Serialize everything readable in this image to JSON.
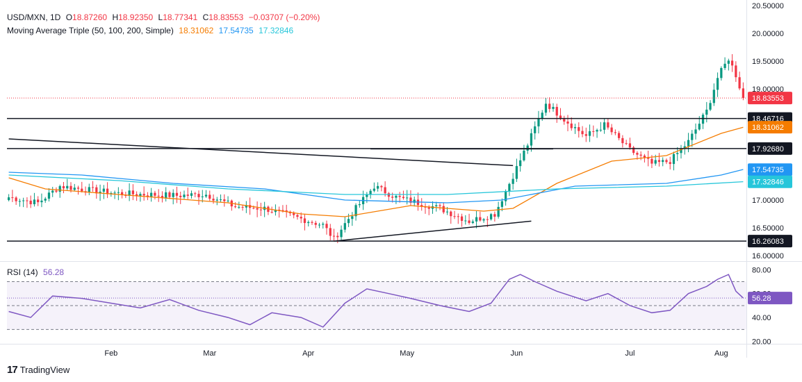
{
  "header": {
    "symbol": "USD/MXN, 1D",
    "o_label": "O",
    "o_value": "18.87260",
    "h_label": "H",
    "h_value": "18.92350",
    "l_label": "L",
    "l_value": "18.77341",
    "c_label": "C",
    "c_value": "18.83553",
    "change": "−0.03707 (−0.20%)",
    "ma_title": "Moving Average Triple (50, 100, 200, Simple)",
    "ma50": "18.31062",
    "ma100": "17.54735",
    "ma200": "17.32846"
  },
  "rsi_header": {
    "title": "RSI (14)",
    "value": "56.28"
  },
  "brand": {
    "name": "TradingView"
  },
  "colors": {
    "up": "#089981",
    "down": "#f23645",
    "ma50": "#f57c00",
    "ma100": "#2196f3",
    "ma200": "#26c6da",
    "rsi": "#7e57c2",
    "price_tag": "#f23645",
    "level": "#131722"
  },
  "chart_data": [
    {
      "type": "candlestick",
      "title": "USD/MXN, 1D",
      "ylim": [
        15.9,
        20.6
      ],
      "y_ticks": [
        "20.50000",
        "20.00000",
        "19.50000",
        "19.00000",
        "17.00000",
        "16.50000",
        "16.00000"
      ],
      "x_ticks": [
        "Feb",
        "Mar",
        "Apr",
        "May",
        "Jun",
        "Jul",
        "Aug"
      ],
      "last_price": 18.83553,
      "last_price_label": "18.83553",
      "levels": [
        {
          "value": 18.46716,
          "label": "18.46716"
        },
        {
          "value": 17.9268,
          "label": "17.92680"
        },
        {
          "value": 16.26083,
          "label": "16.26083"
        }
      ],
      "ma_tags": [
        {
          "name": "MA 50",
          "value": 18.31062,
          "label": "18.31062"
        },
        {
          "name": "MA 100",
          "value": 17.54735,
          "label": "17.54735"
        },
        {
          "name": "MA 200",
          "value": 17.32846,
          "label": "17.32846"
        }
      ],
      "trendlines": [
        {
          "name": "descending-trendline",
          "from": [
            0,
            18.1
          ],
          "to": [
            138,
            17.62
          ]
        },
        {
          "name": "ascending-trendline",
          "from": [
            89,
            16.26
          ],
          "to": [
            143,
            16.62
          ]
        },
        {
          "name": "range-top-line",
          "from": [
            99,
            17.92
          ],
          "to": [
            149,
            17.92
          ]
        }
      ],
      "anchors": [
        [
          0,
          17.05
        ],
        [
          8,
          16.95
        ],
        [
          14,
          17.25
        ],
        [
          22,
          17.18
        ],
        [
          30,
          17.12
        ],
        [
          38,
          17.1
        ],
        [
          46,
          17.08
        ],
        [
          54,
          17.1
        ],
        [
          62,
          16.88
        ],
        [
          70,
          16.85
        ],
        [
          78,
          16.7
        ],
        [
          86,
          16.55
        ],
        [
          89,
          16.3
        ],
        [
          95,
          16.85
        ],
        [
          100,
          17.25
        ],
        [
          106,
          17.05
        ],
        [
          112,
          16.95
        ],
        [
          118,
          16.85
        ],
        [
          126,
          16.62
        ],
        [
          133,
          16.75
        ],
        [
          137,
          17.3
        ],
        [
          142,
          18.0
        ],
        [
          147,
          18.75
        ],
        [
          152,
          18.45
        ],
        [
          158,
          18.15
        ],
        [
          163,
          18.35
        ],
        [
          170,
          17.9
        ],
        [
          176,
          17.65
        ],
        [
          181,
          17.7
        ],
        [
          186,
          18.05
        ],
        [
          191,
          18.6
        ],
        [
          194,
          19.2
        ],
        [
          197,
          19.55
        ],
        [
          199,
          19.25
        ],
        [
          201,
          18.84
        ]
      ],
      "series": [
        {
          "name": "MA 50",
          "points": [
            [
              0,
              17.4
            ],
            [
              10,
              17.2
            ],
            [
              30,
              17.1
            ],
            [
              60,
              16.95
            ],
            [
              80,
              16.75
            ],
            [
              92,
              16.7
            ],
            [
              110,
              16.9
            ],
            [
              130,
              16.8
            ],
            [
              138,
              16.85
            ],
            [
              150,
              17.3
            ],
            [
              165,
              17.7
            ],
            [
              180,
              17.8
            ],
            [
              195,
              18.2
            ],
            [
              201,
              18.31
            ]
          ]
        },
        {
          "name": "MA 100",
          "points": [
            [
              0,
              17.5
            ],
            [
              20,
              17.45
            ],
            [
              45,
              17.3
            ],
            [
              70,
              17.2
            ],
            [
              92,
              17.0
            ],
            [
              120,
              16.95
            ],
            [
              135,
              17.0
            ],
            [
              155,
              17.25
            ],
            [
              180,
              17.3
            ],
            [
              195,
              17.45
            ],
            [
              201,
              17.55
            ]
          ]
        },
        {
          "name": "MA 200",
          "points": [
            [
              0,
              17.45
            ],
            [
              30,
              17.35
            ],
            [
              60,
              17.2
            ],
            [
              92,
              17.1
            ],
            [
              120,
              17.1
            ],
            [
              150,
              17.2
            ],
            [
              180,
              17.25
            ],
            [
              201,
              17.33
            ]
          ]
        }
      ]
    },
    {
      "type": "line",
      "title": "RSI (14)",
      "ylim": [
        18,
        86
      ],
      "y_ticks": [
        "80.00",
        "60.00",
        "40.00",
        "20.00"
      ],
      "band": [
        30,
        70
      ],
      "midline": 50,
      "last_value": 56.28,
      "last_value_label": "56.28",
      "points": [
        [
          0,
          45
        ],
        [
          6,
          40
        ],
        [
          12,
          58
        ],
        [
          20,
          56
        ],
        [
          28,
          52
        ],
        [
          36,
          48
        ],
        [
          44,
          55
        ],
        [
          52,
          46
        ],
        [
          60,
          40
        ],
        [
          66,
          34
        ],
        [
          72,
          44
        ],
        [
          80,
          40
        ],
        [
          86,
          32
        ],
        [
          92,
          52
        ],
        [
          98,
          64
        ],
        [
          104,
          60
        ],
        [
          110,
          56
        ],
        [
          118,
          50
        ],
        [
          126,
          45
        ],
        [
          132,
          52
        ],
        [
          137,
          72
        ],
        [
          140,
          76
        ],
        [
          144,
          70
        ],
        [
          150,
          62
        ],
        [
          158,
          54
        ],
        [
          164,
          60
        ],
        [
          170,
          50
        ],
        [
          176,
          44
        ],
        [
          181,
          46
        ],
        [
          186,
          60
        ],
        [
          191,
          66
        ],
        [
          194,
          72
        ],
        [
          197,
          76
        ],
        [
          199,
          62
        ],
        [
          201,
          56.28
        ]
      ]
    }
  ]
}
